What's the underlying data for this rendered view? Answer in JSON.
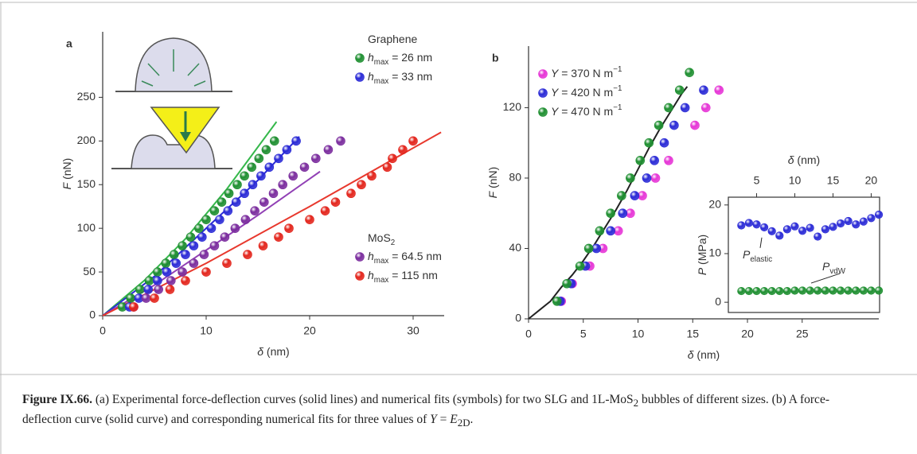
{
  "chart_data": [
    {
      "type": "scatter",
      "panel": "a",
      "frame": "axes",
      "xlabel": [
        {
          "t": "δ",
          "s": "italic"
        },
        {
          "t": " (nm)"
        }
      ],
      "ylabel": [
        {
          "t": "F",
          "s": "italic"
        },
        {
          "t": " (nN)"
        }
      ],
      "xlim": [
        0,
        33
      ],
      "ylim": [
        0,
        325
      ],
      "xticks": [
        0,
        10,
        20,
        30
      ],
      "yticks": [
        0,
        50,
        100,
        150,
        200,
        250
      ],
      "groups": [
        {
          "title": [
            {
              "t": "Graphene"
            }
          ],
          "legend": "upper right",
          "series": [
            {
              "name": [
                {
                  "t": "h",
                  "s": "italic"
                },
                {
                  "t": "max",
                  "s": "sub"
                },
                {
                  "t": " = 26 nm"
                }
              ],
              "color": "#1f8f31",
              "x": [
                1.9,
                2.7,
                3.6,
                4.5,
                5.3,
                6.1,
                6.9,
                7.7,
                8.5,
                9.3,
                10.0,
                10.8,
                11.5,
                12.2,
                13.0,
                13.7,
                14.4,
                15.1,
                15.8,
                16.6
              ],
              "values": [
                10,
                20,
                30,
                40,
                50,
                60,
                70,
                80,
                90,
                100,
                110,
                120,
                130,
                140,
                150,
                160,
                170,
                180,
                190,
                200
              ],
              "fit": {
                "color": "#35b84b",
                "x": [
                  0,
                  4,
                  8,
                  12,
                  16.8
                ],
                "values": [
                  0,
                  40,
                  88,
                  145,
                  222
                ]
              }
            },
            {
              "name": [
                {
                  "t": "h",
                  "s": "italic"
                },
                {
                  "t": "max",
                  "s": "sub"
                },
                {
                  "t": " = 33 nm"
                }
              ],
              "color": "#2b2bd6",
              "x": [
                2.6,
                3.5,
                4.4,
                5.3,
                6.2,
                7.1,
                8.0,
                8.8,
                9.6,
                10.5,
                11.3,
                12.1,
                12.9,
                13.7,
                14.5,
                15.3,
                16.1,
                17.0,
                17.8,
                18.7
              ],
              "values": [
                10,
                20,
                30,
                40,
                50,
                60,
                70,
                80,
                90,
                100,
                110,
                120,
                130,
                140,
                150,
                160,
                170,
                180,
                190,
                200
              ],
              "fit": {
                "color": "#2b2bd6",
                "x": [
                  0,
                  5,
                  10,
                  15,
                  19
                ],
                "values": [
                  0,
                  45,
                  100,
                  155,
                  205
                ]
              }
            }
          ]
        },
        {
          "title": [
            {
              "t": "MoS"
            },
            {
              "t": "2",
              "s": "sub"
            }
          ],
          "legend": "lower right",
          "series": [
            {
              "name": [
                {
                  "t": "h",
                  "s": "italic"
                },
                {
                  "t": "max",
                  "s": "sub"
                },
                {
                  "t": " = 64.5 nm"
                }
              ],
              "color": "#7b2d9e",
              "x": [
                3.0,
                4.2,
                5.4,
                6.6,
                7.7,
                8.8,
                9.8,
                10.8,
                11.8,
                12.8,
                13.8,
                14.7,
                15.6,
                16.5,
                17.4,
                18.4,
                19.5,
                20.6,
                21.8,
                23.0
              ],
              "values": [
                10,
                20,
                30,
                40,
                50,
                60,
                70,
                80,
                90,
                100,
                110,
                120,
                130,
                140,
                150,
                160,
                170,
                180,
                190,
                200
              ],
              "fit": {
                "color": "#9140b5",
                "x": [
                  0,
                  5,
                  10,
                  15,
                  21
                ],
                "values": [
                  0,
                  35,
                  75,
                  115,
                  165
                ]
              }
            },
            {
              "name": [
                {
                  "t": "h",
                  "s": "italic"
                },
                {
                  "t": "max",
                  "s": "sub"
                },
                {
                  "t": " = 115 nm"
                }
              ],
              "color": "#e3261d",
              "x": [
                3.0,
                5.0,
                6.5,
                8.0,
                10.0,
                12.0,
                14.0,
                15.5,
                17.0,
                18.0,
                20.0,
                21.5,
                22.5,
                24.0,
                25.0,
                26.0,
                27.5,
                28.0,
                29.0,
                30.0
              ],
              "values": [
                10,
                20,
                30,
                40,
                50,
                60,
                70,
                80,
                90,
                100,
                110,
                120,
                130,
                140,
                150,
                160,
                170,
                180,
                190,
                200
              ],
              "fit": {
                "color": "#e8382d",
                "x": [
                  0,
                  10,
                  20,
                  32.7
                ],
                "values": [
                  0,
                  60,
                  125,
                  210
                ]
              }
            }
          ]
        }
      ]
    },
    {
      "type": "scatter",
      "panel": "b",
      "frame": "axes",
      "legend": "upper left",
      "xlabel": [
        {
          "t": "δ",
          "s": "italic"
        },
        {
          "t": " (nm)"
        }
      ],
      "ylabel": [
        {
          "t": "F",
          "s": "italic"
        },
        {
          "t": " (nN)"
        }
      ],
      "xlim": [
        0,
        32
      ],
      "ylim": [
        0,
        155
      ],
      "xticks": [
        0,
        5,
        10,
        15,
        20,
        25
      ],
      "yticks": [
        0,
        40,
        80,
        120
      ],
      "curve": {
        "color": "#222222",
        "x": [
          0,
          1,
          2,
          3,
          4,
          5,
          6,
          7,
          8,
          9,
          10,
          11,
          12,
          13,
          14,
          14.5
        ],
        "values": [
          0,
          5,
          10,
          18,
          25,
          33,
          42,
          52,
          62,
          73,
          85,
          97,
          108,
          118,
          128,
          132
        ]
      },
      "series": [
        {
          "name": [
            {
              "t": "Y",
              "s": "italic"
            },
            {
              "t": " = 370 N m"
            },
            {
              "t": "−1",
              "s": "sup"
            }
          ],
          "color": "#e636d6",
          "x": [
            3.0,
            4.0,
            5.6,
            6.8,
            8.2,
            9.3,
            10.4,
            11.6,
            12.8,
            15.2,
            16.2,
            17.4
          ],
          "values": [
            10,
            20,
            30,
            40,
            50,
            60,
            70,
            80,
            90,
            110,
            120,
            130
          ]
        },
        {
          "name": [
            {
              "t": "Y",
              "s": "italic"
            },
            {
              "t": " = 420 N m"
            },
            {
              "t": "−1",
              "s": "sup"
            }
          ],
          "color": "#2b2bd6",
          "x": [
            2.9,
            3.9,
            5.2,
            6.2,
            7.5,
            8.6,
            9.7,
            10.8,
            11.5,
            12.4,
            13.3,
            14.3,
            16.0
          ],
          "values": [
            10,
            20,
            30,
            40,
            50,
            60,
            70,
            80,
            90,
            100,
            110,
            120,
            130
          ]
        },
        {
          "name": [
            {
              "t": "Y",
              "s": "italic"
            },
            {
              "t": " = 470 N m"
            },
            {
              "t": "−1",
              "s": "sup"
            }
          ],
          "color": "#1f8f31",
          "x": [
            2.6,
            3.5,
            4.7,
            5.5,
            6.5,
            7.5,
            8.5,
            9.3,
            10.2,
            11.0,
            11.9,
            12.8,
            13.8,
            14.7
          ],
          "values": [
            10,
            20,
            30,
            40,
            50,
            60,
            70,
            80,
            90,
            100,
            110,
            120,
            130,
            140
          ]
        }
      ]
    },
    {
      "type": "scatter",
      "frame": "box",
      "xaxis": "top",
      "xlabel": [
        {
          "t": "δ",
          "s": "italic"
        },
        {
          "t": " (nm)"
        }
      ],
      "ylabel": [
        {
          "t": "P",
          "s": "italic"
        },
        {
          "t": " (MPa)"
        }
      ],
      "xlim": [
        1.3,
        21.1
      ],
      "ylim": [
        -2.1,
        21.6
      ],
      "xticks": [
        5,
        10,
        15,
        20
      ],
      "yticks": [
        0,
        10,
        20
      ],
      "series": [
        {
          "color": "#2b2bd6",
          "x": [
            3,
            4,
            5,
            6,
            7,
            8,
            9,
            10,
            11,
            12,
            13,
            14,
            15,
            16,
            17,
            18,
            19,
            20,
            21
          ],
          "values": [
            15.8,
            16.3,
            16.0,
            15.4,
            14.6,
            13.7,
            15.0,
            15.6,
            14.7,
            15.3,
            13.5,
            15.0,
            15.5,
            16.2,
            16.7,
            16.0,
            16.6,
            17.3,
            18.0
          ],
          "annotation": [
            {
              "t": "P",
              "s": "italic"
            },
            {
              "t": "elastic",
              "s": "sub"
            }
          ]
        },
        {
          "color": "#1f8f31",
          "x": [
            3,
            4,
            5,
            6,
            7,
            8,
            9,
            10,
            11,
            12,
            13,
            14,
            15,
            16,
            17,
            18,
            19,
            20,
            21
          ],
          "values": [
            2.3,
            2.3,
            2.3,
            2.3,
            2.3,
            2.3,
            2.3,
            2.4,
            2.4,
            2.4,
            2.4,
            2.4,
            2.4,
            2.4,
            2.4,
            2.4,
            2.4,
            2.4,
            2.4
          ],
          "annotation": [
            {
              "t": "P",
              "s": "italic"
            },
            {
              "t": "vdW",
              "s": "sub"
            }
          ]
        }
      ]
    }
  ],
  "caption": [
    {
      "t": "Figure IX.66.",
      "s": "bold"
    },
    {
      "t": " (a) Experimental force-deflection curves (solid lines) and numerical fits (symbols) for two SLG and 1L-MoS"
    },
    {
      "t": "2",
      "s": "sub"
    },
    {
      "t": " bubbles of different sizes. (b) A force-deflection curve (solid curve) and corresponding numerical fits for three values of "
    },
    {
      "t": "Y",
      "s": "italic"
    },
    {
      "t": " = "
    },
    {
      "t": "E",
      "s": "italic"
    },
    {
      "t": "2D",
      "s": "sub"
    },
    {
      "t": "."
    }
  ]
}
